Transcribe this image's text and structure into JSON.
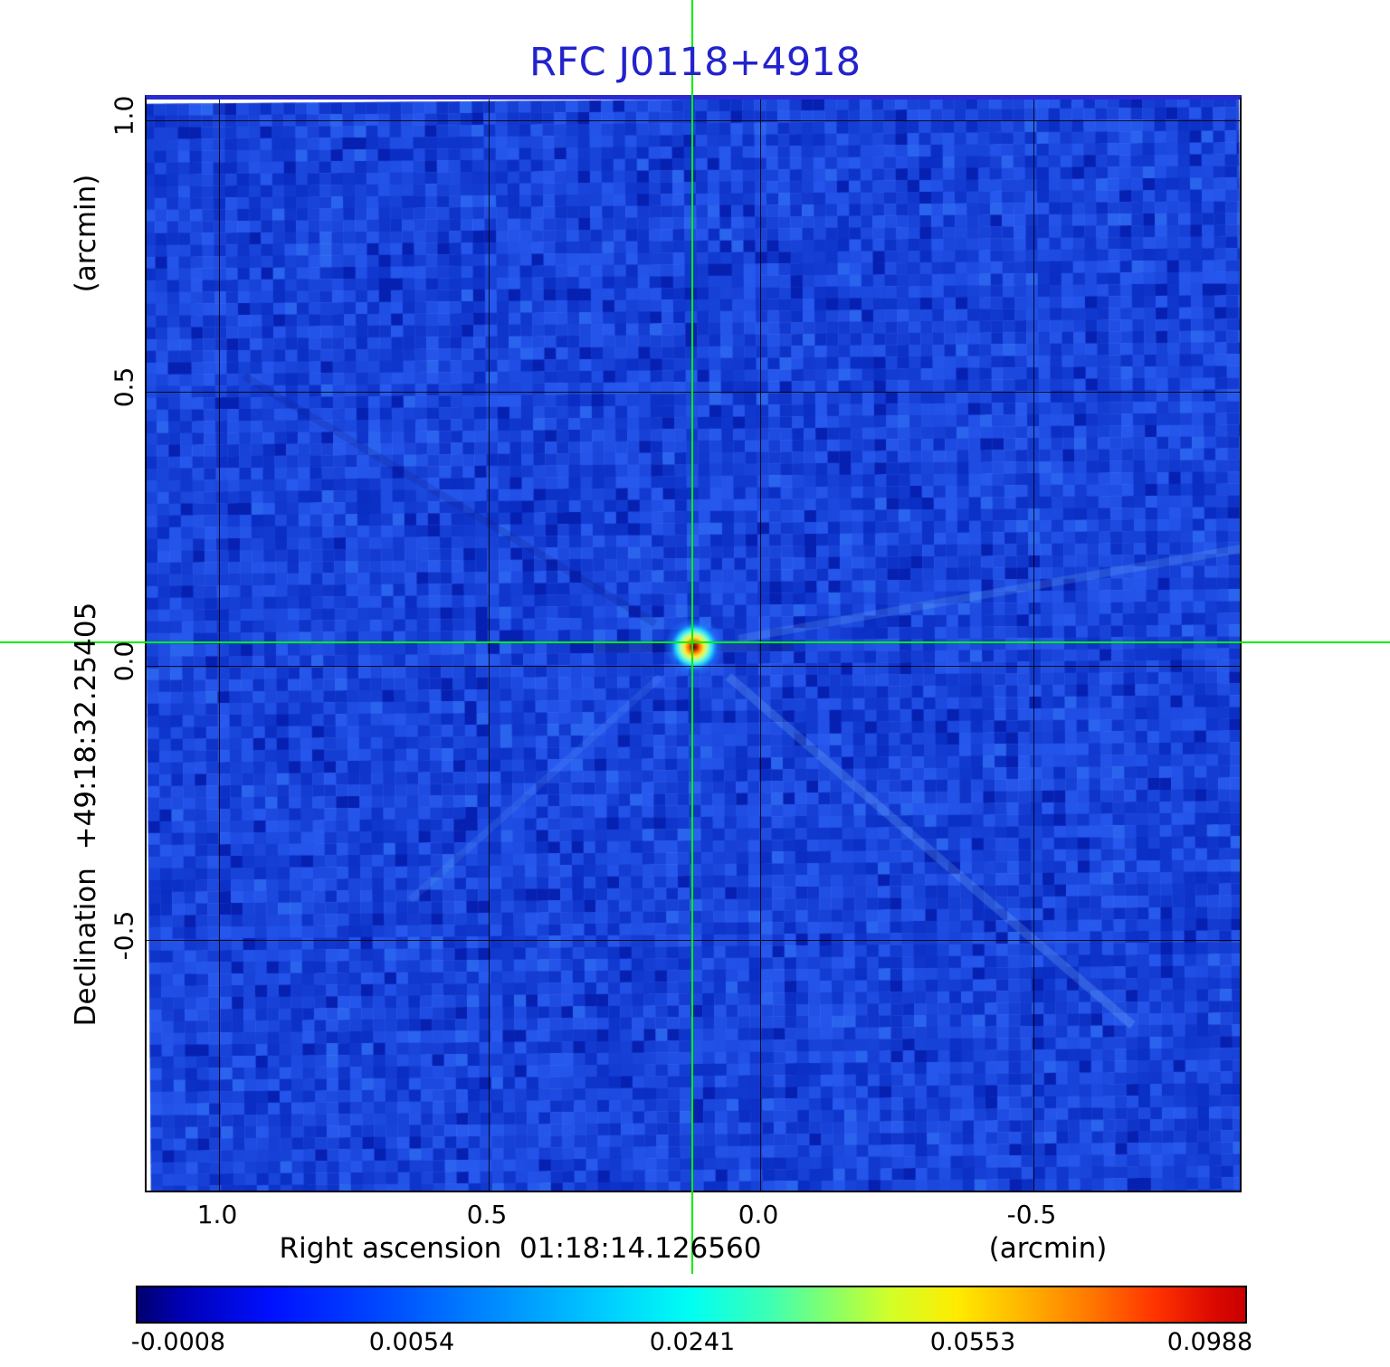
{
  "title": "RFC J0118+4918",
  "colors": {
    "title_blue": "#2323cd",
    "crosshair_green": "#00ef00",
    "field_blue": "#1243d6",
    "frame": "#000000"
  },
  "y_axis": {
    "unit": "(arcmin)",
    "label": "Declination  +49:18:32.25405",
    "ticks": [
      "1.0",
      "0.5",
      "0.0",
      "-0.5"
    ]
  },
  "x_axis": {
    "label": "Right ascension  01:18:14.126560",
    "unit": "(arcmin)",
    "ticks": [
      "1.0",
      "0.5",
      "0.0",
      "-0.5"
    ]
  },
  "colorbar": {
    "ticks": [
      "-0.0008",
      "0.0054",
      "0.0241",
      "0.0553",
      "0.0988"
    ]
  },
  "chart_data": {
    "type": "heatmap",
    "title": "RFC J0118+4918",
    "xlabel": "Right ascension 01:18:14.126560 (arcmin)",
    "ylabel": "Declination +49:18:32.25405 (arcmin)",
    "x_ticks": [
      1.0,
      0.5,
      0.0,
      -0.5
    ],
    "y_ticks": [
      1.0,
      0.5,
      0.0,
      -0.5
    ],
    "x_range": [
      1.15,
      -0.89
    ],
    "y_range": [
      -0.97,
      1.04
    ],
    "grid": true,
    "colormap": "jet",
    "colorbar_ticks": [
      -0.0008,
      0.0054,
      0.0241,
      0.0553,
      0.0988
    ],
    "intensity_min": -0.0008,
    "intensity_max": 0.0988,
    "source_position": {
      "ra": "01:18:14.126560",
      "dec": "+49:18:32.25405",
      "x_offset_arcmin": 0.12,
      "y_offset_arcmin": 0.03,
      "peak_intensity": 0.0988
    }
  }
}
